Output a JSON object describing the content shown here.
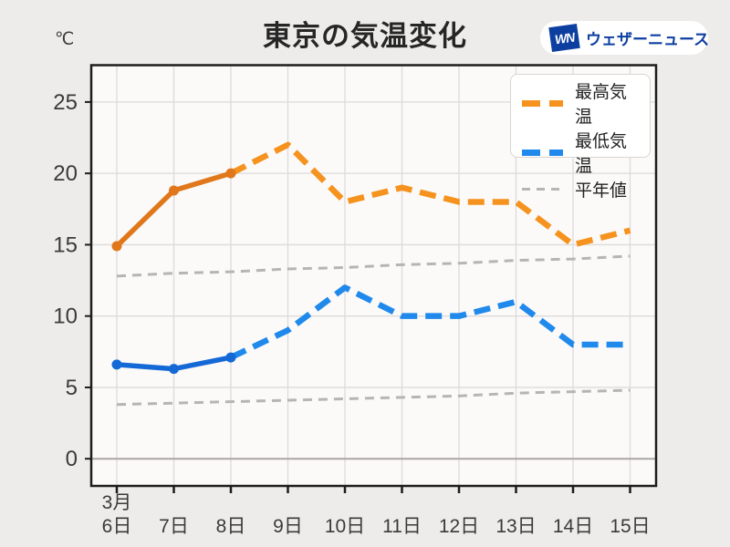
{
  "header": {
    "title": "東京の気温変化",
    "logo": {
      "mark": "WN",
      "text": "ウェザーニュース",
      "color": "#0d3fa0"
    }
  },
  "chart": {
    "unit_label": "℃"
  },
  "legend": {
    "items": [
      {
        "label": "最高気温",
        "color": "#f6921e",
        "thickness": 7
      },
      {
        "label": "最低気温",
        "color": "#2089ec",
        "thickness": 7
      },
      {
        "label": "平年値",
        "color": "#b7b5b3",
        "thickness": 3
      }
    ]
  },
  "chart_data": {
    "type": "line",
    "title": "東京の気温変化",
    "unit": "℃",
    "x_ticks": [
      {
        "month": "3月",
        "day": "6日"
      },
      {
        "day": "7日"
      },
      {
        "day": "8日"
      },
      {
        "day": "9日"
      },
      {
        "day": "10日"
      },
      {
        "day": "11日"
      },
      {
        "day": "12日"
      },
      {
        "day": "13日"
      },
      {
        "day": "14日"
      },
      {
        "day": "15日"
      }
    ],
    "y_ticks": [
      0,
      5,
      10,
      15,
      20,
      25
    ],
    "ylim": [
      -1.9,
      27.6
    ],
    "grid": true,
    "legend_position": "top-right",
    "series": [
      {
        "name": "最高気温",
        "role": "max_temperature",
        "values": [
          14.9,
          18.8,
          20,
          22,
          18,
          19,
          18,
          18,
          15,
          16
        ],
        "solid_color": "#e1771b",
        "dash_color": "#f6921e",
        "style": "solid-then-dashed",
        "solid_until_index": 2,
        "markers_at": [
          0,
          1,
          2
        ]
      },
      {
        "name": "最低気温",
        "role": "min_temperature",
        "values": [
          6.6,
          6.3,
          7.1,
          9,
          12,
          10,
          10,
          11,
          8,
          8
        ],
        "solid_color": "#1569d6",
        "dash_color": "#2089ec",
        "style": "solid-then-dashed",
        "solid_until_index": 2,
        "markers_at": [
          0,
          1,
          2
        ]
      },
      {
        "name": "平年値",
        "role": "normal_high",
        "values": [
          12.8,
          13.0,
          13.1,
          13.3,
          13.4,
          13.6,
          13.7,
          13.9,
          14.0,
          14.2
        ],
        "dash_color": "#b7b5b3",
        "style": "dashed"
      },
      {
        "name": "平年値",
        "role": "normal_low",
        "values": [
          3.8,
          3.9,
          4.0,
          4.1,
          4.2,
          4.3,
          4.4,
          4.6,
          4.7,
          4.8
        ],
        "dash_color": "#b7b5b3",
        "style": "dashed"
      }
    ]
  },
  "colors": {
    "page_bg": "#eeecea",
    "plot_bg": "#fbfaf9",
    "grid": "#dddbd9",
    "zero_line": "#a9a6a3",
    "border": "#1c1c1c",
    "tick_text": "#3c3a38",
    "title_text": "#262626"
  }
}
